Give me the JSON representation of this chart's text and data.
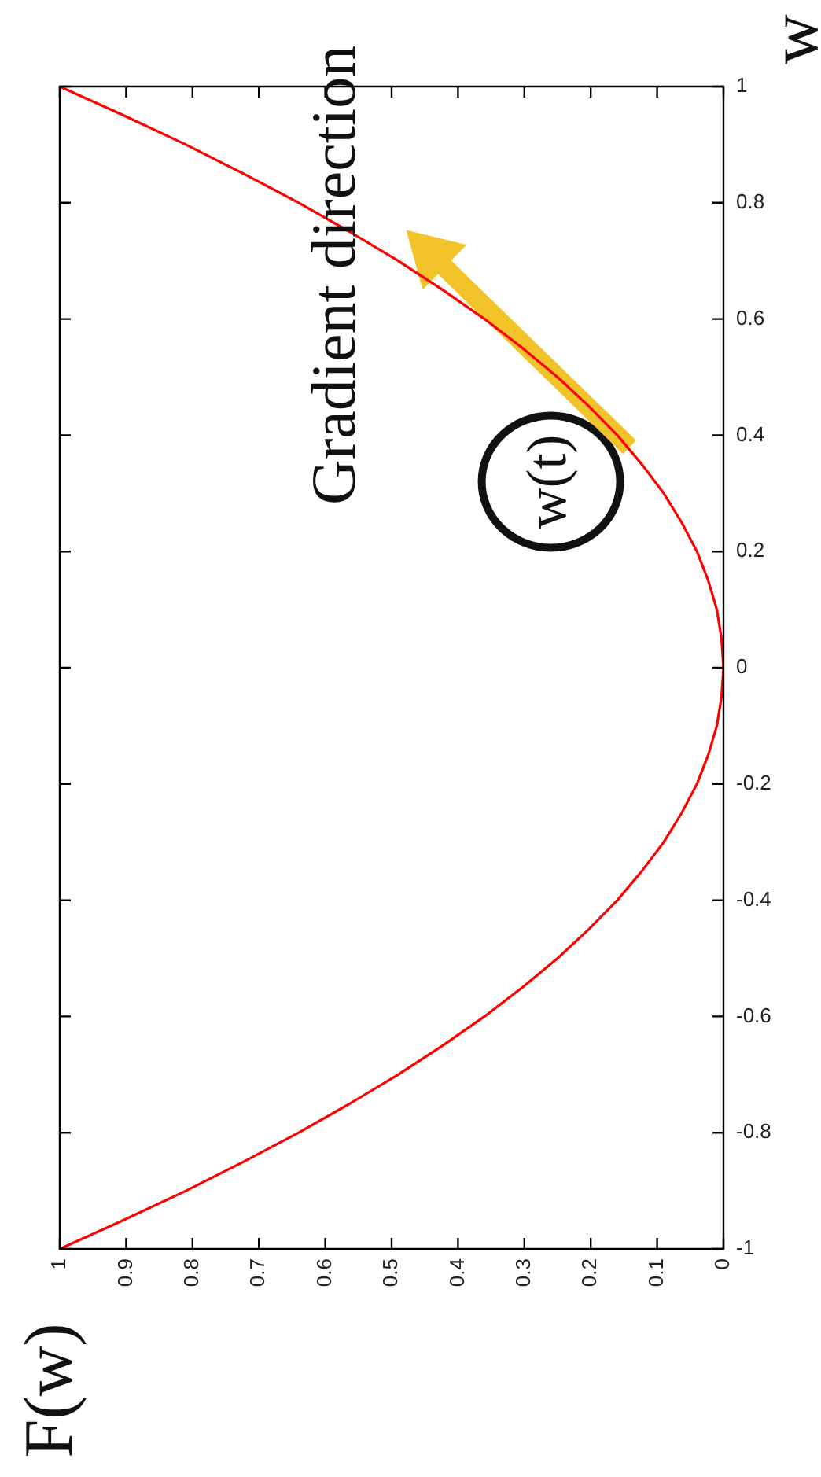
{
  "chart_data": {
    "type": "line",
    "ylabel": "w",
    "x": [
      1,
      0.903,
      0.81,
      0.723,
      0.64,
      0.563,
      0.49,
      0.423,
      0.36,
      0.303,
      0.25,
      0.203,
      0.16,
      0.123,
      0.09,
      0.063,
      0.04,
      0.023,
      0.01,
      0.003,
      0,
      0.003,
      0.01,
      0.023,
      0.04,
      0.063,
      0.09,
      0.123,
      0.16,
      0.203,
      0.25,
      0.303,
      0.36,
      0.423,
      0.49,
      0.563,
      0.64,
      0.723,
      0.81,
      0.903,
      1
    ],
    "series": [
      {
        "color": "#ff0000",
        "values": [
          -1,
          -0.95,
          -0.9,
          -0.85,
          -0.8,
          -0.75,
          -0.7,
          -0.65,
          -0.6,
          -0.55,
          -0.5,
          -0.45,
          -0.4,
          -0.35,
          -0.3,
          -0.25,
          -0.2,
          -0.15,
          -0.1,
          -0.05,
          0,
          0.05,
          0.1,
          0.15,
          0.2,
          0.25,
          0.3,
          0.35,
          0.4,
          0.45,
          0.5,
          0.55,
          0.6,
          0.65,
          0.7,
          0.75,
          0.8,
          0.85,
          0.9,
          0.95,
          1
        ]
      }
    ],
    "xlim": [
      1,
      0
    ],
    "xticks": [
      1,
      0.9,
      0.8,
      0.7,
      0.6,
      0.5,
      0.4,
      0.3,
      0.2,
      0.1,
      0
    ],
    "ylim": [
      -1,
      1
    ],
    "yticks": [
      -1,
      -0.8,
      -0.6,
      -0.4,
      -0.2,
      0,
      0.2,
      0.4,
      0.6,
      0.8,
      1
    ],
    "marker": "none",
    "line_style": "solid",
    "annotations": [
      "Gradient direction",
      "w(t)",
      "F(w)"
    ]
  }
}
